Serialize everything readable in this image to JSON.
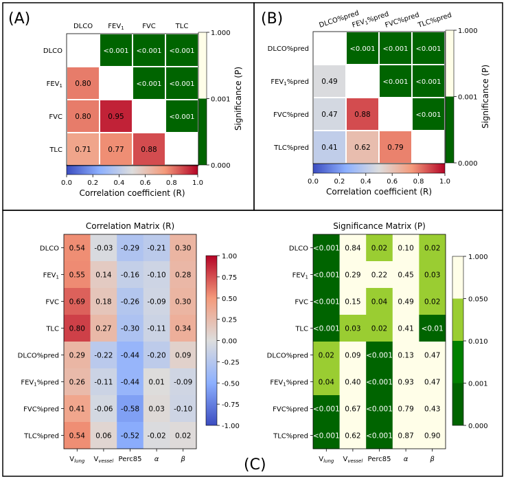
{
  "panels": {
    "A": {
      "label": "(A)"
    },
    "B": {
      "label": "(B)"
    },
    "C": {
      "label": "(C)"
    }
  },
  "colors": {
    "sig_dark_green": "#006400",
    "sig_green": "#008000",
    "sig_lime": "#9acd32",
    "sig_cream": "#fffee8",
    "frame": "#000000"
  },
  "chart_data": [
    {
      "id": "A",
      "type": "heatmap",
      "title": "",
      "columns": [
        "DLCO",
        "FEV1",
        "FVC",
        "TLC"
      ],
      "rows": [
        "DLCO",
        "FEV1",
        "FVC",
        "TLC"
      ],
      "lower_triangle_R": [
        [
          null,
          null,
          null,
          null
        ],
        [
          0.8,
          null,
          null,
          null
        ],
        [
          0.8,
          0.95,
          null,
          null
        ],
        [
          0.71,
          0.77,
          0.88,
          null
        ]
      ],
      "upper_triangle_P_labels": [
        [
          null,
          "<0.001",
          "<0.001",
          "<0.001"
        ],
        [
          null,
          null,
          "<0.001",
          "<0.001"
        ],
        [
          null,
          null,
          null,
          "<0.001"
        ],
        [
          null,
          null,
          null,
          null
        ]
      ],
      "r_colorbar": {
        "label": "Correlation coefficient (R)",
        "ticks": [
          "0.0",
          "0.2",
          "0.4",
          "0.6",
          "0.8",
          "1.0"
        ],
        "range": [
          0,
          1
        ]
      },
      "p_colorbar": {
        "label": "Significance (P)",
        "ticks": [
          "1.000",
          "0.001",
          "0.000"
        ]
      }
    },
    {
      "id": "B",
      "type": "heatmap",
      "title": "",
      "columns": [
        "DLCO%pred",
        "FEV1%pred",
        "FVC%pred",
        "TLC%pred"
      ],
      "rows": [
        "DLCO%pred",
        "FEV1%pred",
        "FVC%pred",
        "TLC%pred"
      ],
      "lower_triangle_R": [
        [
          null,
          null,
          null,
          null
        ],
        [
          0.49,
          null,
          null,
          null
        ],
        [
          0.47,
          0.88,
          null,
          null
        ],
        [
          0.41,
          0.62,
          0.79,
          null
        ]
      ],
      "upper_triangle_P_labels": [
        [
          null,
          "<0.001",
          "<0.001",
          "<0.001"
        ],
        [
          null,
          null,
          "<0.001",
          "<0.001"
        ],
        [
          null,
          null,
          null,
          "<0.001"
        ],
        [
          null,
          null,
          null,
          null
        ]
      ],
      "r_colorbar": {
        "label": "Correlation coefficient (R)",
        "ticks": [
          "0.0",
          "0.2",
          "0.4",
          "0.6",
          "0.8",
          "1.0"
        ],
        "range": [
          0,
          1
        ]
      },
      "p_colorbar": {
        "label": "Significance (P)",
        "ticks": [
          "1.000",
          "0.001",
          "0.000"
        ]
      }
    },
    {
      "id": "C-left",
      "type": "heatmap",
      "title": "Correlation Matrix (R)",
      "columns": [
        "V_lung",
        "V_vessel",
        "Perc85",
        "α",
        "β"
      ],
      "rows": [
        "DLCO",
        "FEV1",
        "FVC",
        "TLC",
        "DLCO%pred",
        "FEV1%pred",
        "FVC%pred",
        "TLC%pred"
      ],
      "values": [
        [
          0.54,
          -0.03,
          -0.29,
          -0.21,
          0.3
        ],
        [
          0.55,
          0.14,
          -0.16,
          -0.1,
          0.28
        ],
        [
          0.69,
          0.18,
          -0.26,
          -0.09,
          0.3
        ],
        [
          0.8,
          0.27,
          -0.3,
          -0.11,
          0.34
        ],
        [
          0.29,
          -0.22,
          -0.44,
          -0.2,
          0.09
        ],
        [
          0.26,
          -0.11,
          -0.44,
          0.01,
          -0.09
        ],
        [
          0.41,
          -0.06,
          -0.58,
          0.03,
          -0.1
        ],
        [
          0.54,
          0.06,
          -0.52,
          -0.02,
          0.02
        ]
      ],
      "colorbar": {
        "ticks": [
          "1.00",
          "0.75",
          "0.50",
          "0.25",
          "0.00",
          "-0.25",
          "-0.50",
          "-0.75",
          "-1.00"
        ],
        "range": [
          -1,
          1
        ]
      }
    },
    {
      "id": "C-right",
      "type": "heatmap",
      "title": "Significance Matrix (P)",
      "columns": [
        "V_lung",
        "V_vessel",
        "Perc85",
        "α",
        "β"
      ],
      "rows": [
        "DLCO",
        "FEV1",
        "FVC",
        "TLC",
        "DLCO%pred",
        "FEV1%pred",
        "FVC%pred",
        "TLC%pred"
      ],
      "labels": [
        [
          "<0.001",
          "0.84",
          "0.02",
          "0.10",
          "0.02"
        ],
        [
          "<0.001",
          "0.29",
          "0.22",
          "0.45",
          "0.03"
        ],
        [
          "<0.001",
          "0.15",
          "0.04",
          "0.49",
          "0.02"
        ],
        [
          "<0.001",
          "0.03",
          "0.02",
          "0.41",
          "<0.01"
        ],
        [
          "0.02",
          "0.09",
          "<0.001",
          "0.13",
          "0.47"
        ],
        [
          "0.04",
          "0.40",
          "<0.001",
          "0.93",
          "0.47"
        ],
        [
          "<0.001",
          "0.67",
          "<0.001",
          "0.79",
          "0.43"
        ],
        [
          "<0.001",
          "0.62",
          "<0.001",
          "0.87",
          "0.90"
        ]
      ],
      "colorbar": {
        "ticks": [
          "1.000",
          "0.050",
          "0.010",
          "0.001",
          "0.000"
        ]
      }
    }
  ]
}
